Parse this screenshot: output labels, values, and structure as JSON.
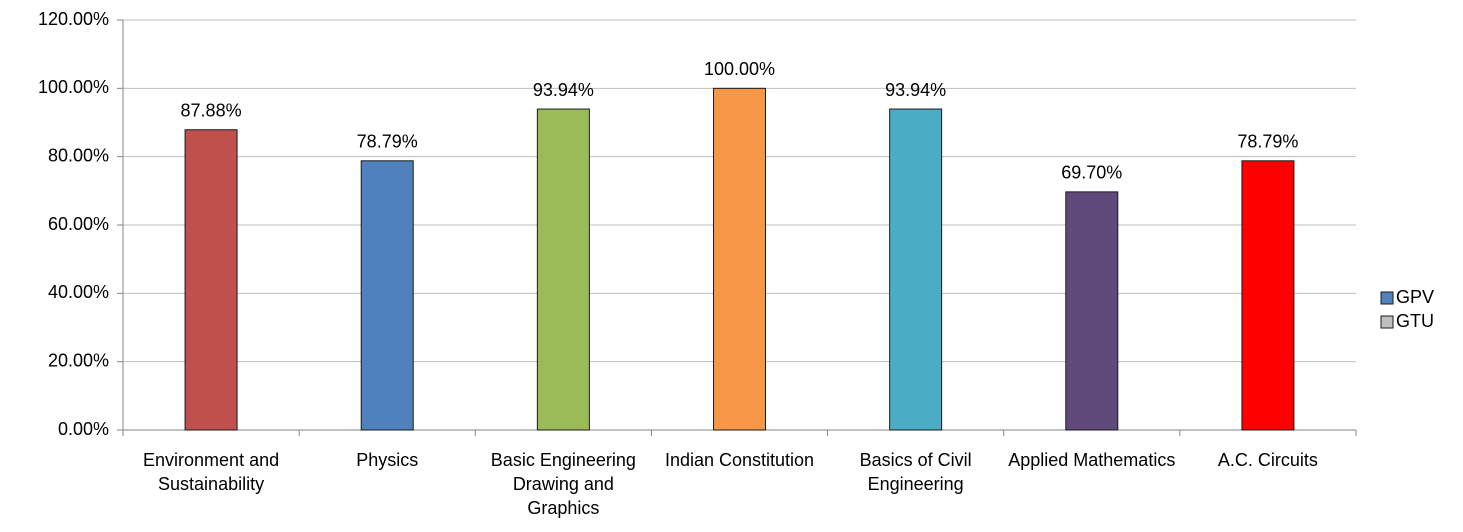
{
  "chart_data": {
    "type": "bar",
    "categories": [
      "Environment and Sustainability",
      "Physics",
      "Basic Engineering Drawing and Graphics",
      "Indian Constitution",
      "Basics of Civil Engineering",
      "Applied Mathematics",
      "A.C. Circuits"
    ],
    "series": [
      {
        "name": "GPV",
        "color": "#4f81bd",
        "colors": [
          "#c0504d",
          "#4f81bd",
          "#9bbb59",
          "#f79646",
          "#4bacc6",
          "#604a7b",
          "#ff0000"
        ],
        "values": [
          87.88,
          78.79,
          93.94,
          100,
          93.94,
          69.7,
          78.79
        ],
        "value_labels": [
          "87.88%",
          "78.79%",
          "93.94%",
          "100.00%",
          "93.94%",
          "69.70%",
          "78.79%"
        ]
      },
      {
        "name": "GTU",
        "color": "#bfbfbf",
        "values": [
          null,
          null,
          null,
          null,
          null,
          null,
          null
        ]
      }
    ],
    "ylim": [
      0,
      120
    ],
    "yticks": [
      {
        "value": 0,
        "label": "0.00%"
      },
      {
        "value": 20,
        "label": "20.00%"
      },
      {
        "value": 40,
        "label": "40.00%"
      },
      {
        "value": 60,
        "label": "60.00%"
      },
      {
        "value": 80,
        "label": "80.00%"
      },
      {
        "value": 100,
        "label": "100.00%"
      },
      {
        "value": 120,
        "label": "120.00%"
      }
    ],
    "grid": true,
    "legend": "right"
  }
}
